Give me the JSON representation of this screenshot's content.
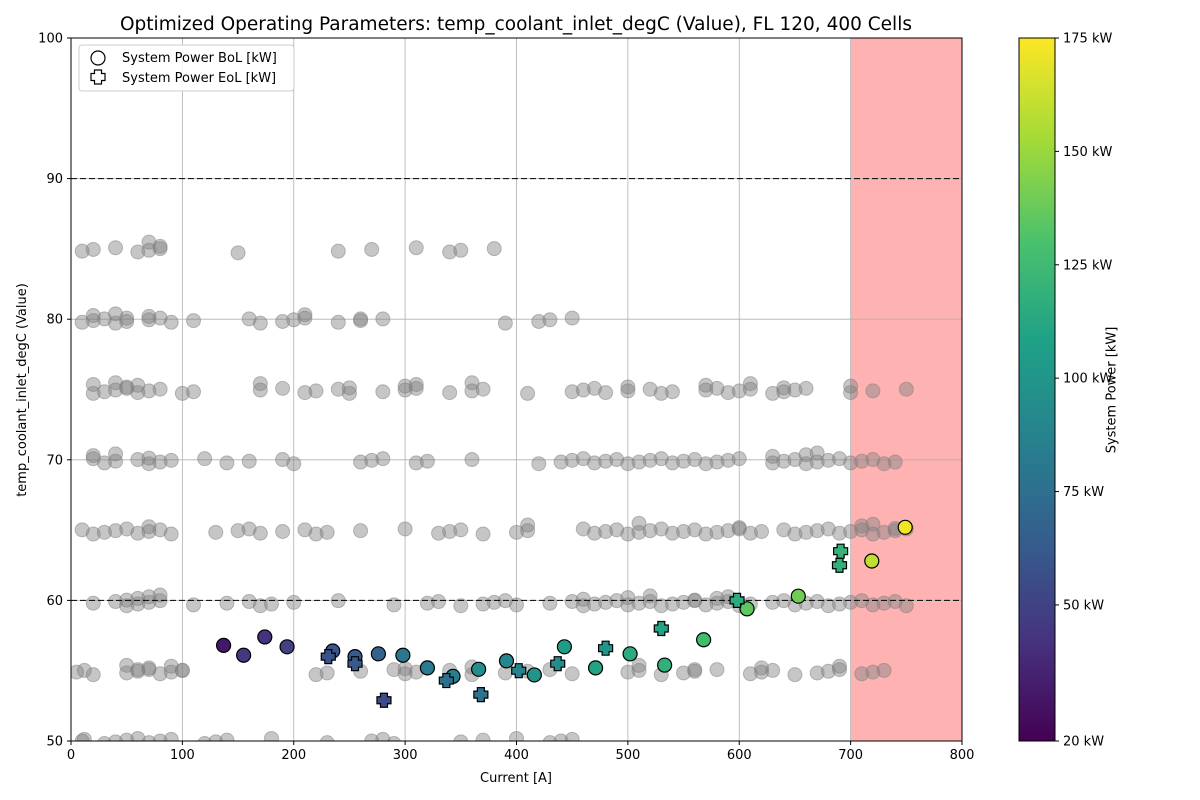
{
  "chart_data": {
    "type": "scatter",
    "title": "Optimized Operating Parameters: temp_coolant_inlet_degC (Value), FL 120, 400 Cells",
    "xlabel": "Current [A]",
    "ylabel": "temp_coolant_inlet_degC (Value)",
    "xlim": [
      0,
      800
    ],
    "ylim": [
      50,
      100
    ],
    "x_ticks": [
      "0",
      "100",
      "200",
      "300",
      "400",
      "500",
      "600",
      "700",
      "800"
    ],
    "y_ticks": [
      "50",
      "60",
      "70",
      "80",
      "90",
      "100"
    ],
    "grid": true,
    "legend": {
      "position": "top-left",
      "entries": [
        "System Power BoL [kW]",
        "System Power EoL [kW]"
      ]
    },
    "reference_lines": [
      60,
      90
    ],
    "shaded_region": {
      "x_from": 700,
      "x_to": 800,
      "color": "#ff0000"
    },
    "colorbar": {
      "label": "System Power [kW]",
      "range": [
        20,
        175
      ],
      "ticks": [
        {
          "value": 20,
          "label": "20 kW"
        },
        {
          "value": 50,
          "label": "50 kW"
        },
        {
          "value": 75,
          "label": "75 kW"
        },
        {
          "value": 100,
          "label": "100 kW"
        },
        {
          "value": 125,
          "label": "125 kW"
        },
        {
          "value": 150,
          "label": "150 kW"
        },
        {
          "value": 175,
          "label": "175 kW"
        }
      ],
      "colormap": "viridis"
    },
    "series": [
      {
        "name": "System Power BoL [kW]",
        "marker": "circle",
        "points": [
          {
            "x": 137,
            "y": 56.8,
            "power": 30
          },
          {
            "x": 155,
            "y": 56.1,
            "power": 45
          },
          {
            "x": 174,
            "y": 57.4,
            "power": 42
          },
          {
            "x": 194,
            "y": 56.7,
            "power": 50
          },
          {
            "x": 235,
            "y": 56.4,
            "power": 60
          },
          {
            "x": 255,
            "y": 56.0,
            "power": 63
          },
          {
            "x": 276,
            "y": 56.2,
            "power": 68
          },
          {
            "x": 298,
            "y": 56.1,
            "power": 80
          },
          {
            "x": 320,
            "y": 55.2,
            "power": 82
          },
          {
            "x": 343,
            "y": 54.6,
            "power": 85
          },
          {
            "x": 366,
            "y": 55.1,
            "power": 95
          },
          {
            "x": 391,
            "y": 55.7,
            "power": 90
          },
          {
            "x": 416,
            "y": 54.7,
            "power": 100
          },
          {
            "x": 443,
            "y": 56.7,
            "power": 105
          },
          {
            "x": 471,
            "y": 55.2,
            "power": 110
          },
          {
            "x": 502,
            "y": 56.2,
            "power": 115
          },
          {
            "x": 533,
            "y": 55.4,
            "power": 118
          },
          {
            "x": 568,
            "y": 57.2,
            "power": 125
          },
          {
            "x": 607,
            "y": 59.4,
            "power": 135
          },
          {
            "x": 653,
            "y": 60.3,
            "power": 140
          },
          {
            "x": 719,
            "y": 62.8,
            "power": 160
          },
          {
            "x": 749,
            "y": 65.2,
            "power": 172
          }
        ]
      },
      {
        "name": "System Power EoL [kW]",
        "marker": "plus",
        "points": [
          {
            "x": 231,
            "y": 56.0,
            "power": 58
          },
          {
            "x": 255,
            "y": 55.5,
            "power": 62
          },
          {
            "x": 281,
            "y": 52.9,
            "power": 55
          },
          {
            "x": 337,
            "y": 54.3,
            "power": 75
          },
          {
            "x": 368,
            "y": 53.3,
            "power": 78
          },
          {
            "x": 402,
            "y": 55.0,
            "power": 88
          },
          {
            "x": 437,
            "y": 55.5,
            "power": 95
          },
          {
            "x": 480,
            "y": 56.6,
            "power": 100
          },
          {
            "x": 530,
            "y": 58.0,
            "power": 110
          },
          {
            "x": 598,
            "y": 60.0,
            "power": 115
          },
          {
            "x": 690,
            "y": 62.5,
            "power": 118
          },
          {
            "x": 691,
            "y": 63.5,
            "power": 120
          }
        ]
      }
    ],
    "background_points": {
      "color": "#808080",
      "rows": [
        {
          "y": 50.0,
          "x": [
            10,
            12,
            30,
            40,
            50,
            60,
            70,
            80,
            90,
            120,
            130,
            140,
            180,
            230,
            270,
            280,
            290,
            350,
            370,
            400,
            430,
            440,
            450
          ]
        },
        {
          "y": 54.9,
          "x": [
            5,
            12,
            20,
            50,
            60,
            70,
            80,
            90,
            100,
            220,
            230,
            260,
            290,
            300,
            310,
            340,
            360,
            390,
            410,
            430,
            450,
            500,
            510,
            530,
            550,
            560,
            580,
            610,
            620,
            630,
            650,
            670,
            680,
            690,
            710,
            720,
            730
          ]
        },
        {
          "y": 55.2,
          "x": [
            50,
            60,
            70,
            90,
            100,
            300,
            360,
            510,
            560,
            620,
            690
          ]
        },
        {
          "y": 59.8,
          "x": [
            20,
            40,
            50,
            60,
            70,
            80,
            110,
            140,
            160,
            170,
            180,
            200,
            240,
            290,
            320,
            330,
            350,
            370,
            380,
            390,
            400,
            430,
            450,
            460,
            470,
            480,
            490,
            500,
            510,
            520,
            530,
            540,
            550,
            560,
            570,
            580,
            590,
            600,
            610,
            630,
            640,
            650,
            660,
            670,
            680,
            690,
            700,
            710,
            720,
            730,
            740,
            750
          ]
        },
        {
          "y": 60.2,
          "x": [
            50,
            60,
            70,
            80,
            460,
            500,
            520,
            560,
            580,
            590
          ]
        },
        {
          "y": 64.9,
          "x": [
            10,
            20,
            30,
            40,
            50,
            60,
            70,
            80,
            90,
            130,
            150,
            160,
            170,
            190,
            210,
            220,
            230,
            260,
            300,
            330,
            340,
            350,
            370,
            400,
            410,
            460,
            470,
            480,
            490,
            500,
            510,
            520,
            530,
            540,
            550,
            560,
            570,
            580,
            590,
            600,
            610,
            620,
            640,
            650,
            660,
            670,
            680,
            690,
            700,
            710,
            720,
            730,
            740,
            750
          ]
        },
        {
          "y": 65.3,
          "x": [
            70,
            410,
            510,
            600,
            710,
            720,
            740
          ]
        },
        {
          "y": 69.9,
          "x": [
            20,
            30,
            40,
            60,
            70,
            80,
            90,
            120,
            140,
            160,
            190,
            200,
            260,
            270,
            280,
            310,
            320,
            360,
            420,
            440,
            450,
            460,
            470,
            480,
            490,
            500,
            510,
            520,
            530,
            540,
            550,
            560,
            570,
            580,
            590,
            600,
            630,
            640,
            650,
            660,
            670,
            680,
            690,
            700,
            710,
            720,
            730,
            740
          ]
        },
        {
          "y": 70.3,
          "x": [
            20,
            40,
            70,
            630,
            660,
            670
          ]
        },
        {
          "y": 74.9,
          "x": [
            20,
            30,
            40,
            50,
            60,
            70,
            80,
            100,
            110,
            170,
            190,
            210,
            220,
            240,
            250,
            280,
            300,
            310,
            340,
            360,
            370,
            410,
            450,
            460,
            470,
            480,
            500,
            520,
            530,
            540,
            570,
            580,
            590,
            600,
            610,
            630,
            640,
            650,
            660,
            700,
            720,
            750
          ]
        },
        {
          "y": 75.3,
          "x": [
            20,
            40,
            50,
            60,
            170,
            250,
            300,
            310,
            360,
            500,
            570,
            610,
            640,
            700
          ]
        },
        {
          "y": 79.9,
          "x": [
            10,
            20,
            30,
            40,
            50,
            70,
            80,
            90,
            110,
            160,
            170,
            190,
            200,
            210,
            240,
            260,
            280,
            390,
            420,
            430,
            450
          ]
        },
        {
          "y": 80.2,
          "x": [
            20,
            40,
            50,
            70,
            210,
            260
          ]
        },
        {
          "y": 84.9,
          "x": [
            10,
            20,
            40,
            60,
            70,
            80,
            150,
            240,
            270,
            310,
            340,
            350,
            380
          ]
        },
        {
          "y": 85.3,
          "x": [
            70,
            80
          ]
        }
      ]
    }
  }
}
